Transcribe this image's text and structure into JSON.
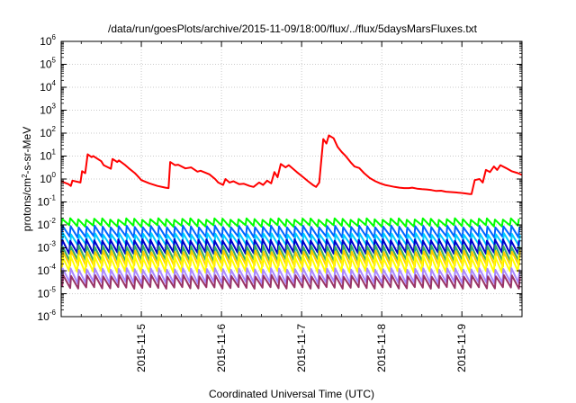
{
  "chart_data": {
    "type": "line",
    "title": "/data/run/goesPlots/archive/2015-11-09/18:00/flux/../flux/5daysMarsFluxes.txt",
    "xlabel": "Coordinated Universal Time (UTC)",
    "ylabel_parts": [
      "protons/cm",
      "2",
      "-s-sr-MeV"
    ],
    "yscale": "log",
    "ylim_exp": [
      -6,
      6
    ],
    "y_tick_base": "10",
    "y_tick_exponents": [
      "-6",
      "-5",
      "-4",
      "-3",
      "-2",
      "-1",
      "0",
      "1",
      "2",
      "3",
      "4",
      "5",
      "6"
    ],
    "xlim_days": [
      4.0,
      9.75
    ],
    "x_ticks": [
      {
        "label": "2015-11-5",
        "day": 5
      },
      {
        "label": "2015-11-6",
        "day": 6
      },
      {
        "label": "2015-11-7",
        "day": 7
      },
      {
        "label": "2015-11-8",
        "day": 8
      },
      {
        "label": "2015-11-9",
        "day": 9
      }
    ],
    "grid": true,
    "red_series": {
      "color": "#ff0000",
      "points": [
        [
          4.0,
          0.8
        ],
        [
          4.09,
          0.6
        ],
        [
          4.12,
          0.5
        ],
        [
          4.14,
          0.85
        ],
        [
          4.24,
          0.7
        ],
        [
          4.26,
          2.2
        ],
        [
          4.3,
          1.8
        ],
        [
          4.33,
          12
        ],
        [
          4.38,
          9
        ],
        [
          4.4,
          10
        ],
        [
          4.5,
          6
        ],
        [
          4.53,
          4
        ],
        [
          4.62,
          2.8
        ],
        [
          4.64,
          7.5
        ],
        [
          4.7,
          5.5
        ],
        [
          4.72,
          6.5
        ],
        [
          4.8,
          4
        ],
        [
          4.84,
          3
        ],
        [
          4.92,
          1.8
        ],
        [
          4.95,
          1.4
        ],
        [
          5.0,
          0.9
        ],
        [
          5.1,
          0.65
        ],
        [
          5.2,
          0.5
        ],
        [
          5.3,
          0.42
        ],
        [
          5.34,
          0.4
        ],
        [
          5.36,
          5.5
        ],
        [
          5.42,
          4
        ],
        [
          5.46,
          4.2
        ],
        [
          5.55,
          2.9
        ],
        [
          5.62,
          3.2
        ],
        [
          5.7,
          2.1
        ],
        [
          5.74,
          2.3
        ],
        [
          5.85,
          1.6
        ],
        [
          5.92,
          1.0
        ],
        [
          5.96,
          0.7
        ],
        [
          6.02,
          0.55
        ],
        [
          6.05,
          1.0
        ],
        [
          6.1,
          0.7
        ],
        [
          6.15,
          0.8
        ],
        [
          6.22,
          0.6
        ],
        [
          6.28,
          0.62
        ],
        [
          6.35,
          0.5
        ],
        [
          6.4,
          0.45
        ],
        [
          6.47,
          0.7
        ],
        [
          6.52,
          0.55
        ],
        [
          6.57,
          0.85
        ],
        [
          6.62,
          0.65
        ],
        [
          6.66,
          2.0
        ],
        [
          6.7,
          1.2
        ],
        [
          6.74,
          4.5
        ],
        [
          6.8,
          3.2
        ],
        [
          6.84,
          4.0
        ],
        [
          6.94,
          2.0
        ],
        [
          7.02,
          1.2
        ],
        [
          7.08,
          0.8
        ],
        [
          7.14,
          0.55
        ],
        [
          7.18,
          0.45
        ],
        [
          7.22,
          0.7
        ],
        [
          7.27,
          55
        ],
        [
          7.31,
          35
        ],
        [
          7.34,
          80
        ],
        [
          7.4,
          60
        ],
        [
          7.45,
          25
        ],
        [
          7.5,
          15
        ],
        [
          7.55,
          10
        ],
        [
          7.62,
          5
        ],
        [
          7.66,
          3.5
        ],
        [
          7.72,
          3.0
        ],
        [
          7.78,
          1.8
        ],
        [
          7.85,
          1.1
        ],
        [
          7.92,
          0.8
        ],
        [
          7.98,
          0.65
        ],
        [
          8.04,
          0.55
        ],
        [
          8.1,
          0.5
        ],
        [
          8.16,
          0.45
        ],
        [
          8.22,
          0.42
        ],
        [
          8.28,
          0.4
        ],
        [
          8.34,
          0.4
        ],
        [
          8.38,
          0.42
        ],
        [
          8.44,
          0.38
        ],
        [
          8.5,
          0.36
        ],
        [
          8.56,
          0.35
        ],
        [
          8.62,
          0.33
        ],
        [
          8.68,
          0.3
        ],
        [
          8.74,
          0.31
        ],
        [
          8.8,
          0.28
        ],
        [
          8.86,
          0.27
        ],
        [
          8.92,
          0.26
        ],
        [
          8.98,
          0.25
        ],
        [
          9.02,
          0.24
        ],
        [
          9.06,
          0.23
        ],
        [
          9.1,
          0.22
        ],
        [
          9.12,
          0.22
        ],
        [
          9.16,
          0.9
        ],
        [
          9.22,
          1.0
        ],
        [
          9.26,
          0.7
        ],
        [
          9.3,
          2.5
        ],
        [
          9.35,
          2.0
        ],
        [
          9.4,
          3.5
        ],
        [
          9.44,
          2.5
        ],
        [
          9.48,
          4.0
        ],
        [
          9.55,
          3.0
        ],
        [
          9.62,
          2.2
        ],
        [
          9.7,
          1.8
        ],
        [
          9.75,
          1.5
        ]
      ]
    },
    "sawtooth_series": [
      {
        "color": "#00ff00",
        "peak": 0.018,
        "trough": 0.009,
        "lw": 2
      },
      {
        "color": "#0066ff",
        "peak": 0.0085,
        "trough": 0.003,
        "lw": 2
      },
      {
        "color": "#00ccff",
        "peak": 0.004,
        "trough": 0.0013,
        "lw": 2
      },
      {
        "color": "#0000cc",
        "peak": 0.0022,
        "trough": 0.0006,
        "lw": 2
      },
      {
        "color": "#33aa66",
        "peak": 0.0012,
        "trough": 0.00028,
        "lw": 2
      },
      {
        "color": "#ffcc00",
        "peak": 0.0007,
        "trough": 0.00016,
        "lw": 2
      },
      {
        "color": "#ffff00",
        "peak": 0.00045,
        "trough": 9e-05,
        "lw": 2
      },
      {
        "color": "#aa88ff",
        "peak": 0.00012,
        "trough": 3e-05,
        "lw": 2
      },
      {
        "color": "#993366",
        "peak": 6e-05,
        "trough": 1.8e-05,
        "lw": 2
      }
    ],
    "sawtooth_period_days": 0.1
  }
}
